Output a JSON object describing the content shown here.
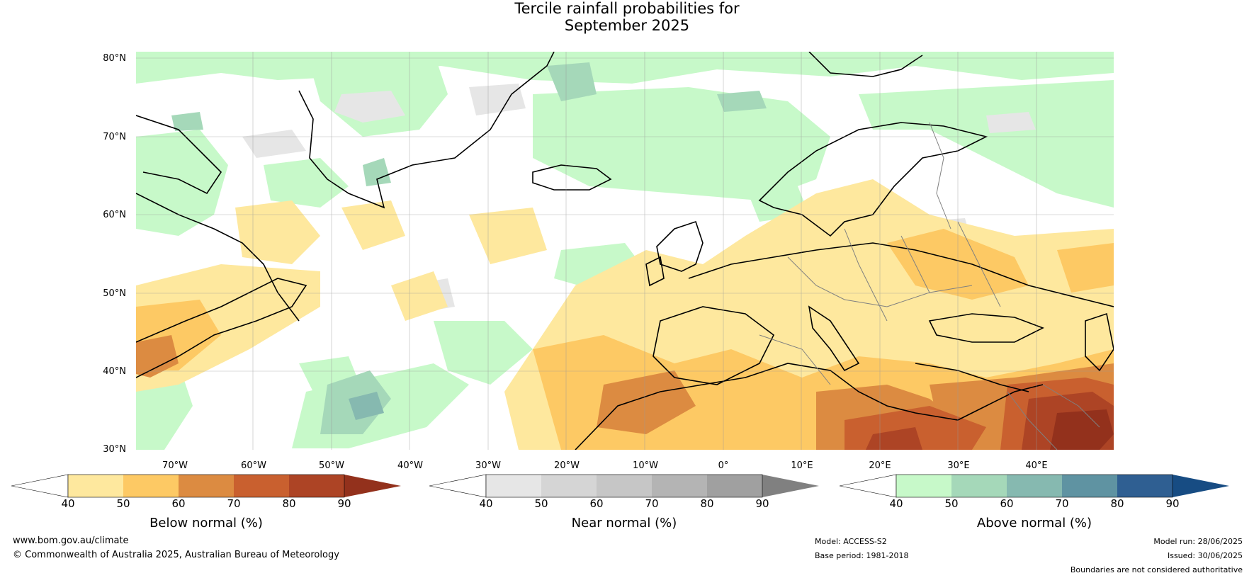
{
  "title": {
    "line1": "Tercile rainfall probabilities for",
    "line2": "September 2025"
  },
  "map": {
    "lat_labels": [
      "80°N",
      "70°N",
      "60°N",
      "50°N",
      "40°N",
      "30°N"
    ],
    "lon_labels": [
      "70°W",
      "60°W",
      "50°W",
      "40°W",
      "30°W",
      "20°W",
      "10°W",
      "0°",
      "10°E",
      "20°E",
      "30°E",
      "40°E"
    ]
  },
  "colorbars": [
    {
      "title": "Below normal (%)",
      "ticks": [
        "40",
        "50",
        "60",
        "70",
        "80",
        "90"
      ],
      "colors": [
        "#ffffff",
        "#fee89e",
        "#fdc964",
        "#dc8b41",
        "#c9602f",
        "#ad4425",
        "#93311c"
      ]
    },
    {
      "title": "Near normal (%)",
      "ticks": [
        "40",
        "50",
        "60",
        "70",
        "80",
        "90"
      ],
      "colors": [
        "#ffffff",
        "#e6e6e6",
        "#d5d5d5",
        "#c6c6c6",
        "#b4b4b4",
        "#a0a0a0",
        "#808080"
      ]
    },
    {
      "title": "Above normal (%)",
      "ticks": [
        "40",
        "50",
        "60",
        "70",
        "80",
        "90"
      ],
      "colors": [
        "#ffffff",
        "#c7f9c9",
        "#a5d8b9",
        "#86b9b0",
        "#5f93a2",
        "#2f5f92",
        "#174c83"
      ]
    }
  ],
  "footer": {
    "website": "www.bom.gov.au/climate",
    "copyright": "© Commonwealth of Australia 2025, Australian Bureau of Meteorology",
    "model": "Model: ACCESS-S2",
    "base_period": "Base period: 1981-2018",
    "model_run": "Model run: 28/06/2025",
    "issued": "Issued: 30/06/2025",
    "disclaimer": "Boundaries are not considered authoritative"
  }
}
